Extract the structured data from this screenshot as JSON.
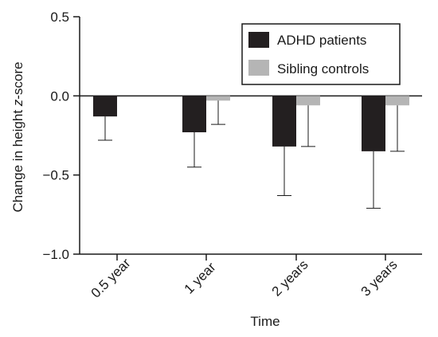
{
  "chart_data": {
    "type": "bar",
    "title": "",
    "xlabel": "Time",
    "ylabel_parts": [
      "Change in height ",
      "z",
      "-score"
    ],
    "categories": [
      "0.5 year",
      "1 year",
      "2 years",
      "3 years"
    ],
    "ylim": [
      -1.0,
      0.5
    ],
    "yticks": [
      0.5,
      0.0,
      -0.5,
      -1.0
    ],
    "ytick_labels": [
      "0.5",
      "0.0",
      "−0.5",
      "−1.0"
    ],
    "grid": false,
    "legend_position": "top-right",
    "series": [
      {
        "name": "ADHD patients",
        "color": "#231f20",
        "values": [
          -0.13,
          -0.23,
          -0.32,
          -0.35
        ],
        "error_neg": [
          0.15,
          0.22,
          0.31,
          0.36
        ]
      },
      {
        "name": "Sibling controls",
        "color": "#b5b5b5",
        "values": [
          0.0,
          -0.03,
          -0.06,
          -0.06
        ],
        "error_neg": [
          0.0,
          0.15,
          0.26,
          0.29
        ]
      }
    ]
  }
}
